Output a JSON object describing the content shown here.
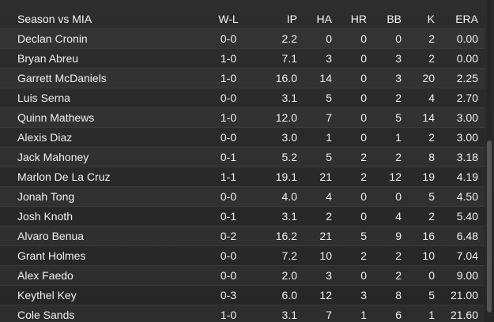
{
  "table": {
    "headers": {
      "name": "Season vs MIA",
      "wl": "W-L",
      "ip": "IP",
      "ha": "HA",
      "hr": "HR",
      "bb": "BB",
      "k": "K",
      "era": "ERA"
    },
    "rows": [
      {
        "name": "Declan Cronin",
        "wl": "0-0",
        "ip": "2.2",
        "ha": "0",
        "hr": "0",
        "bb": "0",
        "k": "2",
        "era": "0.00"
      },
      {
        "name": "Bryan Abreu",
        "wl": "1-0",
        "ip": "7.1",
        "ha": "3",
        "hr": "0",
        "bb": "3",
        "k": "2",
        "era": "0.00"
      },
      {
        "name": "Garrett McDaniels",
        "wl": "1-0",
        "ip": "16.0",
        "ha": "14",
        "hr": "0",
        "bb": "3",
        "k": "20",
        "era": "2.25"
      },
      {
        "name": "Luis Serna",
        "wl": "0-0",
        "ip": "3.1",
        "ha": "5",
        "hr": "0",
        "bb": "2",
        "k": "4",
        "era": "2.70"
      },
      {
        "name": "Quinn Mathews",
        "wl": "1-0",
        "ip": "12.0",
        "ha": "7",
        "hr": "0",
        "bb": "5",
        "k": "14",
        "era": "3.00"
      },
      {
        "name": "Alexis Diaz",
        "wl": "0-0",
        "ip": "3.0",
        "ha": "1",
        "hr": "0",
        "bb": "1",
        "k": "2",
        "era": "3.00"
      },
      {
        "name": "Jack Mahoney",
        "wl": "0-1",
        "ip": "5.2",
        "ha": "5",
        "hr": "2",
        "bb": "2",
        "k": "8",
        "era": "3.18"
      },
      {
        "name": "Marlon De La Cruz",
        "wl": "1-1",
        "ip": "19.1",
        "ha": "21",
        "hr": "2",
        "bb": "12",
        "k": "19",
        "era": "4.19"
      },
      {
        "name": "Jonah Tong",
        "wl": "0-0",
        "ip": "4.0",
        "ha": "4",
        "hr": "0",
        "bb": "0",
        "k": "5",
        "era": "4.50"
      },
      {
        "name": "Josh Knoth",
        "wl": "0-1",
        "ip": "3.1",
        "ha": "2",
        "hr": "0",
        "bb": "4",
        "k": "2",
        "era": "5.40"
      },
      {
        "name": "Alvaro Benua",
        "wl": "0-2",
        "ip": "16.2",
        "ha": "21",
        "hr": "5",
        "bb": "9",
        "k": "16",
        "era": "6.48"
      },
      {
        "name": "Grant Holmes",
        "wl": "0-0",
        "ip": "7.2",
        "ha": "10",
        "hr": "2",
        "bb": "2",
        "k": "10",
        "era": "7.04"
      },
      {
        "name": "Alex Faedo",
        "wl": "0-0",
        "ip": "2.0",
        "ha": "3",
        "hr": "0",
        "bb": "2",
        "k": "0",
        "era": "9.00"
      },
      {
        "name": "Keythel Key",
        "wl": "0-3",
        "ip": "6.0",
        "ha": "12",
        "hr": "3",
        "bb": "8",
        "k": "5",
        "era": "21.00"
      },
      {
        "name": "Cole Sands",
        "wl": "1-0",
        "ip": "3.1",
        "ha": "7",
        "hr": "1",
        "bb": "6",
        "k": "1",
        "era": "21.60"
      }
    ]
  },
  "colors": {
    "background": "#2b2b2b",
    "text": "#f2f2f2",
    "scrollbar_thumb": "#555555"
  }
}
